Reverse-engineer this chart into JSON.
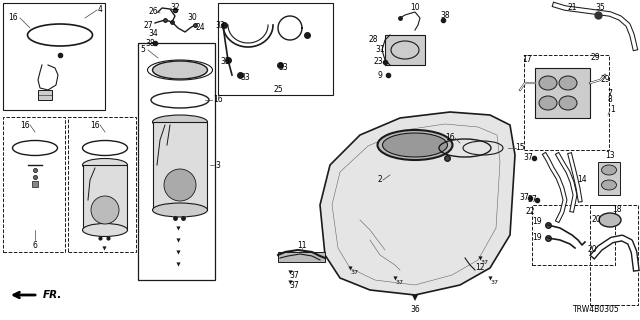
{
  "bg_color": "#ffffff",
  "diagram_code": "TRW4B0305",
  "fr_label": "FR.",
  "lc": "#1a1a1a",
  "tc": "#000000",
  "fs": 5.5,
  "figw": 6.4,
  "figh": 3.2,
  "dpi": 100
}
